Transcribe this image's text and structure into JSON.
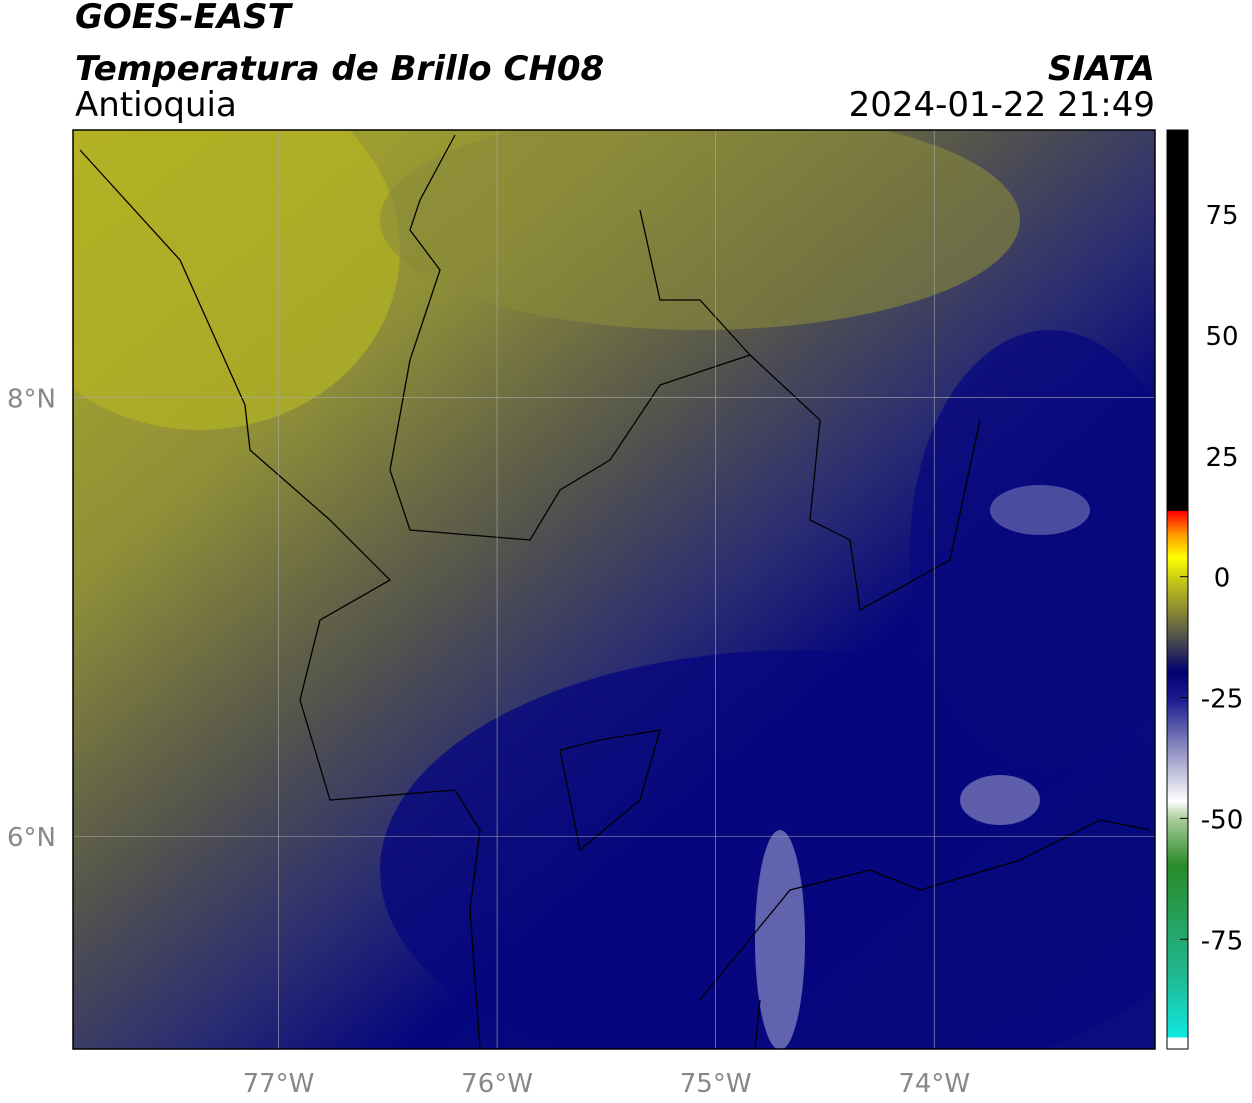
{
  "header": {
    "title": "GOES-EAST",
    "subtitle": "Temperatura de Brillo CH08",
    "region": "Antioquia",
    "source": "SIATA",
    "timestamp": "2024-01-22 21:49"
  },
  "map": {
    "xlim": [
      -77.94,
      -72.99
    ],
    "ylim": [
      5.03,
      9.22
    ],
    "xticks": [
      {
        "value": -77,
        "label": "77°W"
      },
      {
        "value": -76,
        "label": "76°W"
      },
      {
        "value": -75,
        "label": "75°W"
      },
      {
        "value": -74,
        "label": "74°W"
      }
    ],
    "yticks": [
      {
        "value": 6,
        "label": "6°N"
      },
      {
        "value": 8,
        "label": "8°N"
      }
    ]
  },
  "colorbar": {
    "lim": [
      -97.7,
      92.4
    ],
    "ticks": [
      -75,
      -50,
      -25,
      0,
      25,
      50,
      75
    ]
  }
}
